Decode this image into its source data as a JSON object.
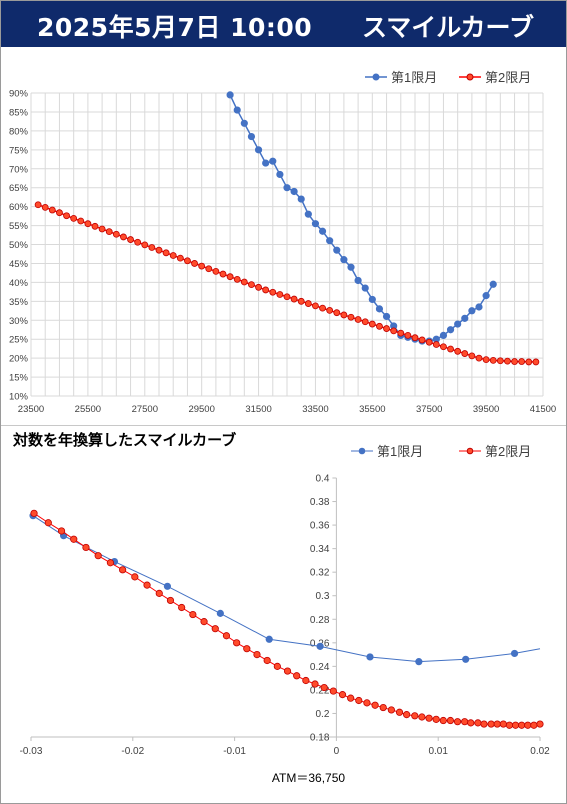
{
  "header": {
    "date_text": "2025年5月7日 10:00",
    "name_text": "スマイルカーブ"
  },
  "colors": {
    "series1": "#4472c4",
    "series2": "#ff0000",
    "series2_fill": "#ff4b2b",
    "header_bg": "#0f2a6b"
  },
  "chart1": {
    "title": "",
    "xlim": [
      23500,
      41500
    ],
    "ylim": [
      10,
      90
    ],
    "x_ticks": [
      "23500",
      "25500",
      "27500",
      "29500",
      "31500",
      "33500",
      "35500",
      "37500",
      "39500",
      "41500"
    ],
    "y_ticks": [
      "10%",
      "15%",
      "20%",
      "25%",
      "30%",
      "35%",
      "40%",
      "45%",
      "50%",
      "55%",
      "60%",
      "65%",
      "70%",
      "75%",
      "80%",
      "85%",
      "90%"
    ],
    "legend": [
      "第1限月",
      "第2限月"
    ]
  },
  "chart2": {
    "title": "対数を年換算したスマイルカーブ",
    "xlim": [
      -0.03,
      0.02
    ],
    "ylim": [
      0.18,
      0.4
    ],
    "x_ticks": [
      "-0.03",
      "-0.02",
      "-0.01",
      "0",
      "0.01",
      "0.02"
    ],
    "y_ticks": [
      "0.18",
      "0.2",
      "0.22",
      "0.24",
      "0.26",
      "0.28",
      "0.3",
      "0.32",
      "0.34",
      "0.36",
      "0.38",
      "0.4"
    ],
    "legend": [
      "第1限月",
      "第2限月"
    ],
    "xlabel": "ATM＝36,750"
  },
  "chart_data": [
    {
      "type": "line",
      "xlim": [
        23500,
        41500
      ],
      "ylim": [
        10,
        90
      ],
      "grid": true,
      "legend_position": "top-right",
      "series": [
        {
          "name": "第1限月",
          "x": [
            30500,
            30750,
            31000,
            31250,
            31500,
            31750,
            32000,
            32250,
            32500,
            32750,
            33000,
            33250,
            33500,
            33750,
            34000,
            34250,
            34500,
            34750,
            35000,
            35250,
            35500,
            35750,
            36000,
            36250,
            36500,
            36750,
            37000,
            37250,
            37500,
            37750,
            38000,
            38250,
            38500,
            38750,
            39000,
            39250,
            39500,
            39750
          ],
          "y": [
            89.5,
            85.5,
            82,
            78.5,
            75,
            71.5,
            72,
            68.5,
            65,
            64,
            62,
            58,
            55.5,
            53.5,
            51,
            48.5,
            46,
            44,
            40.5,
            38.5,
            35.5,
            33,
            31,
            28.5,
            26,
            25.5,
            25,
            24.5,
            24.5,
            25,
            26,
            27.5,
            29,
            30.5,
            32.5,
            33.5,
            36.5,
            39.5
          ]
        },
        {
          "name": "第2限月",
          "x": [
            23750,
            24000,
            24250,
            24500,
            24750,
            25000,
            25250,
            25500,
            25750,
            26000,
            26250,
            26500,
            26750,
            27000,
            27250,
            27500,
            27750,
            28000,
            28250,
            28500,
            28750,
            29000,
            29250,
            29500,
            29750,
            30000,
            30250,
            30500,
            30750,
            31000,
            31250,
            31500,
            31750,
            32000,
            32250,
            32500,
            32750,
            33000,
            33250,
            33500,
            33750,
            34000,
            34250,
            34500,
            34750,
            35000,
            35250,
            35500,
            35750,
            36000,
            36250,
            36500,
            36750,
            37000,
            37250,
            37500,
            37750,
            38000,
            38250,
            38500,
            38750,
            39000,
            39250,
            39500,
            39750,
            40000,
            40250,
            40500,
            40750,
            41000,
            41250
          ],
          "y": [
            60.5,
            59.8,
            59.1,
            58.4,
            57.6,
            56.9,
            56.2,
            55.5,
            54.8,
            54.1,
            53.4,
            52.7,
            52.0,
            51.3,
            50.6,
            49.9,
            49.2,
            48.5,
            47.8,
            47.1,
            46.4,
            45.7,
            45.0,
            44.3,
            43.6,
            42.9,
            42.2,
            41.5,
            40.8,
            40.1,
            39.4,
            38.7,
            38.0,
            37.4,
            36.8,
            36.2,
            35.6,
            35.0,
            34.4,
            33.8,
            33.2,
            32.6,
            32.0,
            31.4,
            30.8,
            30.2,
            29.6,
            29.0,
            28.4,
            27.8,
            27.2,
            26.6,
            26.0,
            25.4,
            24.8,
            24.2,
            23.6,
            23.0,
            22.4,
            21.8,
            21.2,
            20.6,
            20.0,
            19.6,
            19.4,
            19.3,
            19.2,
            19.1,
            19.1,
            19.0,
            19.0
          ]
        }
      ]
    },
    {
      "type": "line",
      "title": "対数を年換算したスマイルカーブ",
      "xlabel": "ATM＝36,750",
      "xlim": [
        -0.03,
        0.02
      ],
      "ylim": [
        0.18,
        0.4
      ],
      "grid": false,
      "legend_position": "top-right",
      "series": [
        {
          "name": "第1限月",
          "x": [
            -0.0298,
            -0.0268,
            -0.0218,
            -0.0166,
            -0.0114,
            -0.0066,
            -0.0016,
            0.0033,
            0.0081,
            0.0127,
            0.0175,
            0.02
          ],
          "y": [
            0.368,
            0.351,
            0.329,
            0.308,
            0.285,
            0.263,
            0.257,
            0.248,
            0.244,
            0.246,
            0.251,
            0.255
          ]
        },
        {
          "name": "第2限月",
          "x": [
            -0.0297,
            -0.0283,
            -0.027,
            -0.0258,
            -0.0246,
            -0.0234,
            -0.0222,
            -0.021,
            -0.0198,
            -0.0186,
            -0.0174,
            -0.0163,
            -0.0152,
            -0.0141,
            -0.013,
            -0.0119,
            -0.0108,
            -0.0098,
            -0.0088,
            -0.0078,
            -0.0068,
            -0.0058,
            -0.0048,
            -0.0039,
            -0.003,
            -0.0021,
            -0.0012,
            -0.0003,
            0.0006,
            0.0014,
            0.0022,
            0.003,
            0.0038,
            0.0046,
            0.0054,
            0.0062,
            0.0069,
            0.0077,
            0.0084,
            0.0091,
            0.0098,
            0.0105,
            0.0112,
            0.0119,
            0.0126,
            0.0132,
            0.0139,
            0.0145,
            0.0152,
            0.0158,
            0.0164,
            0.017,
            0.0176,
            0.0182,
            0.0188,
            0.0194,
            0.02
          ],
          "y": [
            0.37,
            0.362,
            0.355,
            0.348,
            0.341,
            0.334,
            0.328,
            0.322,
            0.316,
            0.309,
            0.302,
            0.296,
            0.29,
            0.284,
            0.278,
            0.272,
            0.266,
            0.26,
            0.255,
            0.25,
            0.245,
            0.24,
            0.236,
            0.232,
            0.228,
            0.225,
            0.222,
            0.219,
            0.216,
            0.213,
            0.211,
            0.209,
            0.207,
            0.205,
            0.203,
            0.201,
            0.199,
            0.198,
            0.197,
            0.196,
            0.195,
            0.194,
            0.194,
            0.193,
            0.193,
            0.192,
            0.192,
            0.191,
            0.191,
            0.191,
            0.191,
            0.19,
            0.19,
            0.19,
            0.19,
            0.19,
            0.191
          ]
        }
      ]
    }
  ]
}
